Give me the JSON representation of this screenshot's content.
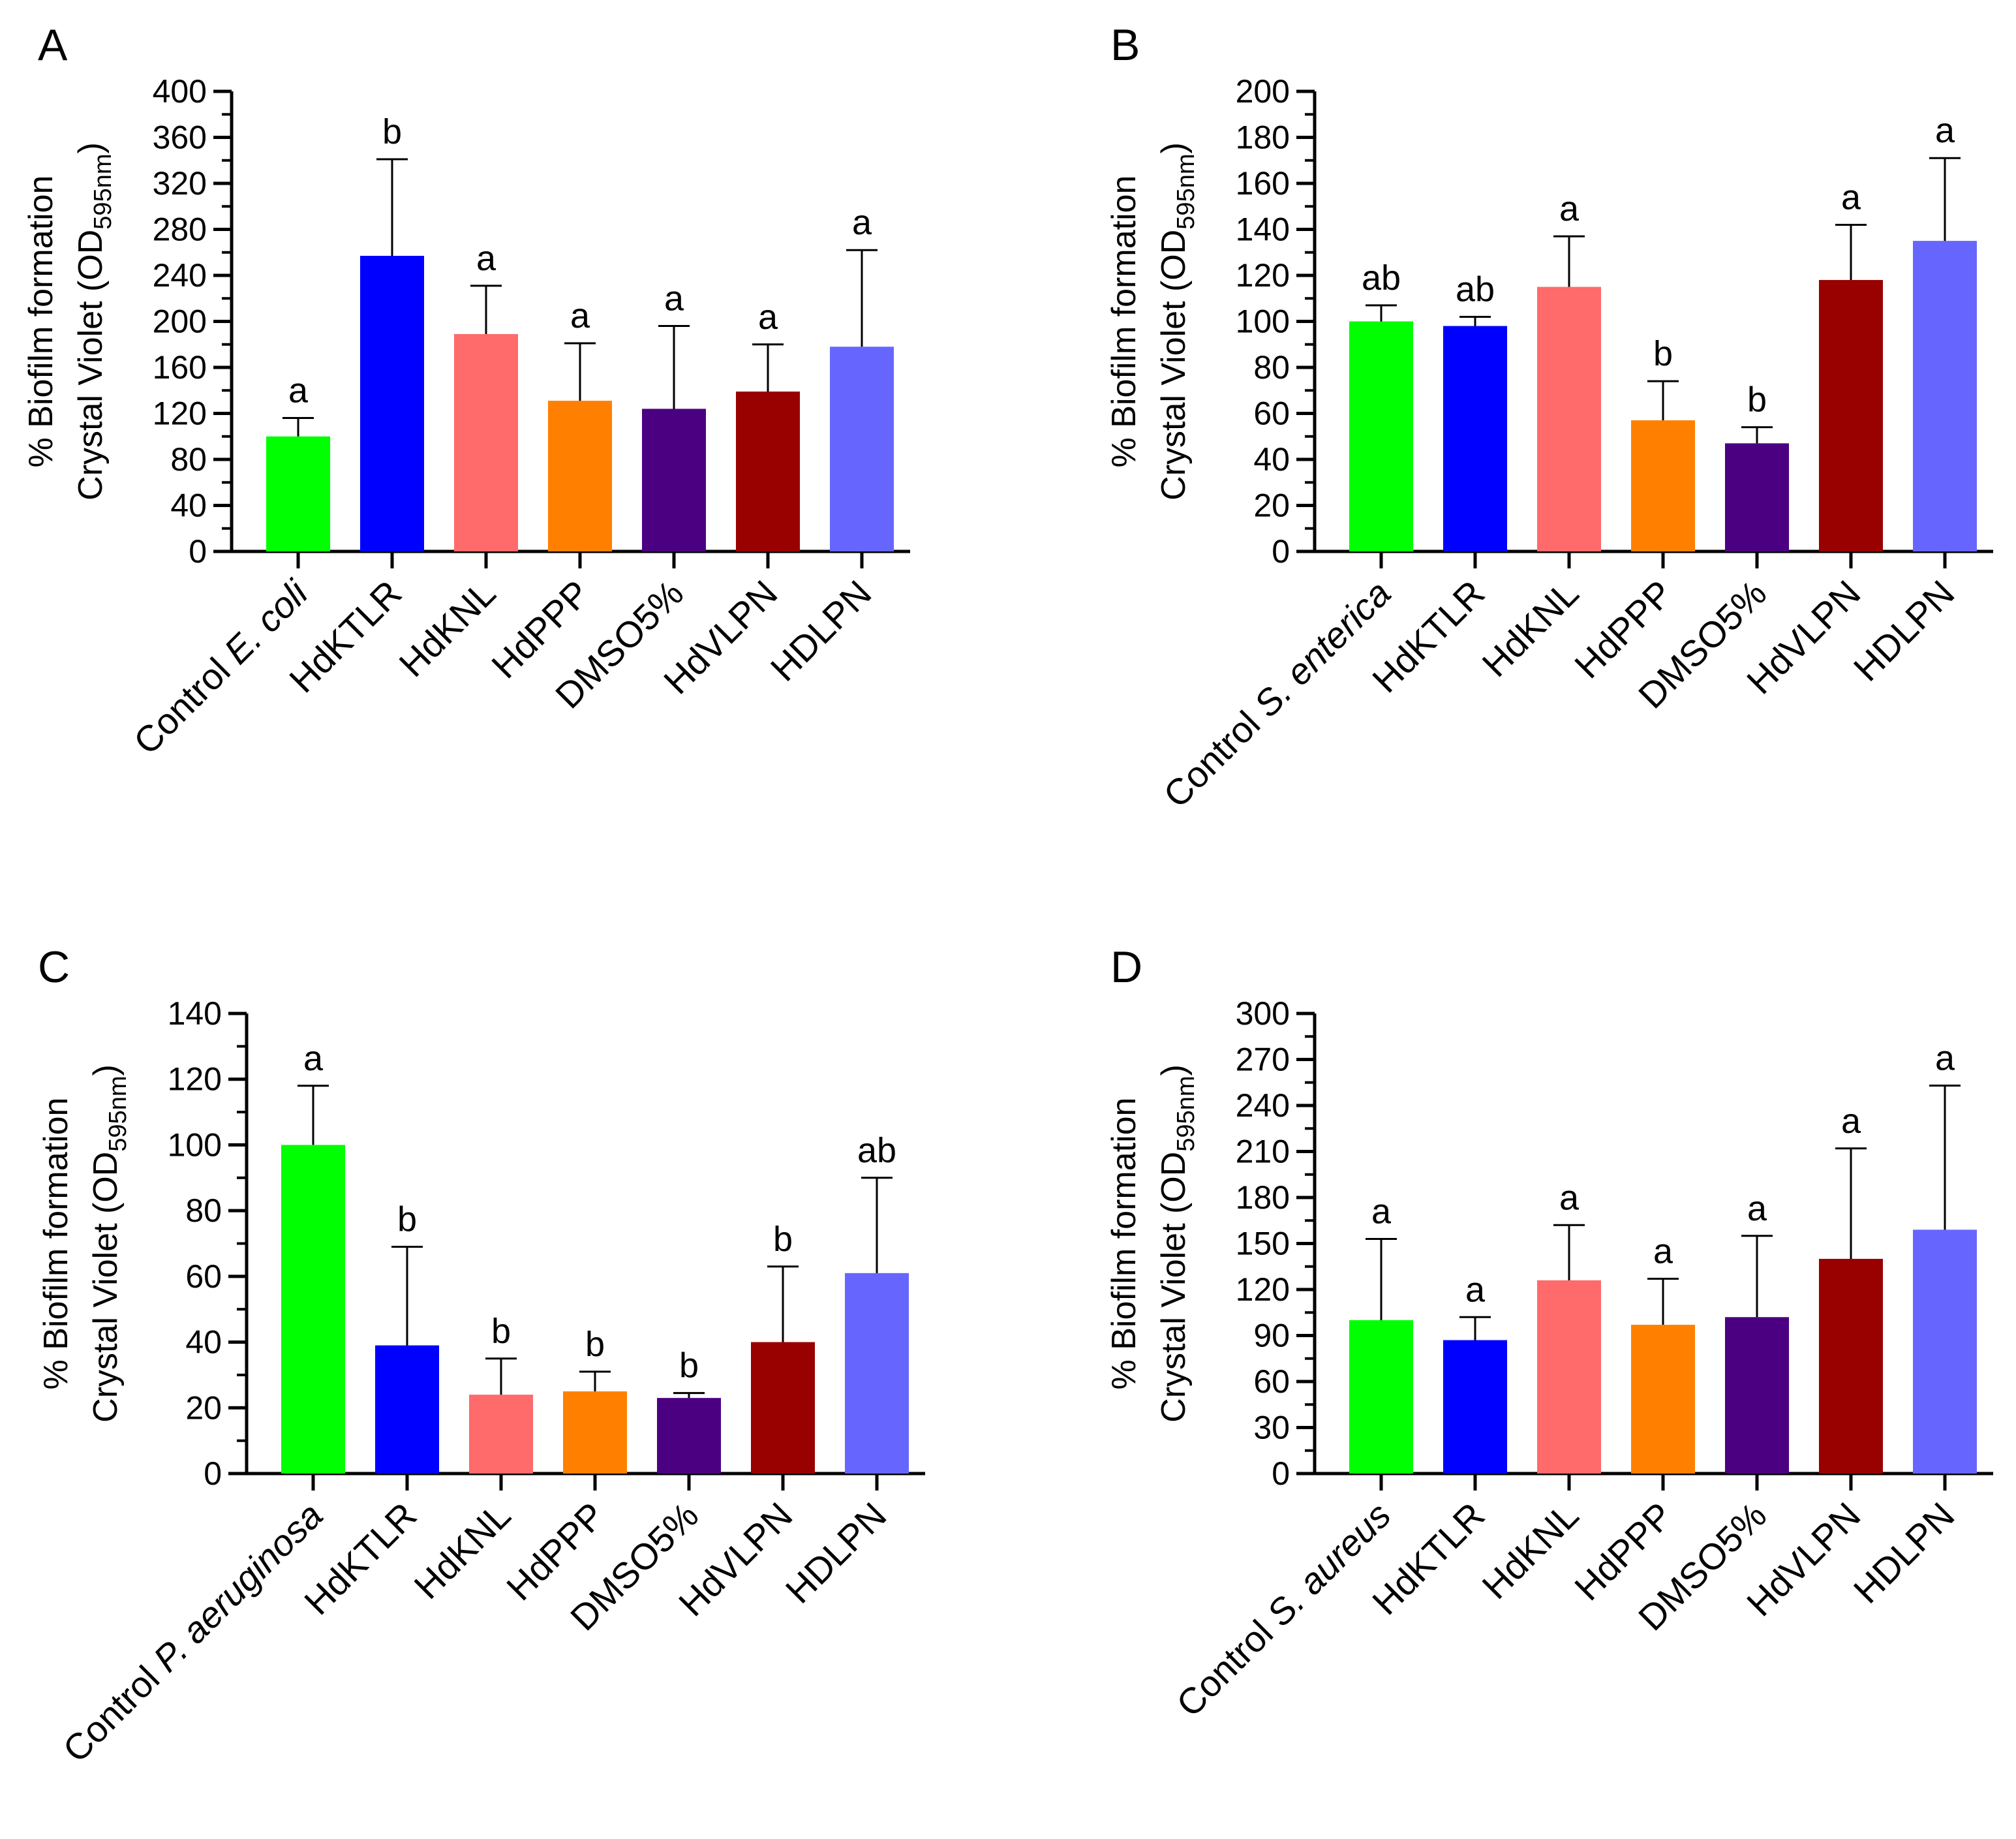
{
  "chart_data": [
    {
      "type": "bar",
      "panel": "A",
      "ylabel_line1": "% Biofilm formation",
      "ylabel_line2_prefix": "Crystal Violet (OD",
      "ylabel_sub": "595nm",
      "ylabel_suffix": ")",
      "ylim": [
        0,
        400
      ],
      "yticks": [
        0,
        40,
        80,
        120,
        160,
        200,
        240,
        280,
        320,
        360,
        400
      ],
      "categories": [
        {
          "prefix": "Control ",
          "italic": "E. coli"
        },
        {
          "prefix": "HdKTLR",
          "italic": ""
        },
        {
          "prefix": "HdKNL",
          "italic": ""
        },
        {
          "prefix": "HdPPP",
          "italic": ""
        },
        {
          "prefix": "DMSO5%",
          "italic": ""
        },
        {
          "prefix": "HdVLPN",
          "italic": ""
        },
        {
          "prefix": "HDLPN",
          "italic": ""
        }
      ],
      "values": [
        100,
        257,
        189,
        131,
        124,
        139,
        178
      ],
      "errors": [
        16,
        84,
        42,
        50,
        72,
        41,
        84
      ],
      "significance": [
        "a",
        "b",
        "a",
        "a",
        "a",
        "a",
        "a"
      ]
    },
    {
      "type": "bar",
      "panel": "B",
      "ylabel_line1": "% Biofilm formation",
      "ylabel_line2_prefix": "Crystal Violet (OD",
      "ylabel_sub": "595nm",
      "ylabel_suffix": ")",
      "ylim": [
        0,
        200
      ],
      "yticks": [
        0,
        20,
        40,
        60,
        80,
        100,
        120,
        140,
        160,
        180,
        200
      ],
      "categories": [
        {
          "prefix": "Control ",
          "italic": "S. enterica"
        },
        {
          "prefix": "HdKTLR",
          "italic": ""
        },
        {
          "prefix": "HdKNL",
          "italic": ""
        },
        {
          "prefix": "HdPPP",
          "italic": ""
        },
        {
          "prefix": "DMSO5%",
          "italic": ""
        },
        {
          "prefix": "HdVLPN",
          "italic": ""
        },
        {
          "prefix": "HDLPN",
          "italic": ""
        }
      ],
      "values": [
        100,
        98,
        115,
        57,
        47,
        118,
        135
      ],
      "errors": [
        7,
        4,
        22,
        17,
        7,
        24,
        36
      ],
      "significance": [
        "ab",
        "ab",
        "a",
        "b",
        "b",
        "a",
        "a"
      ]
    },
    {
      "type": "bar",
      "panel": "C",
      "ylabel_line1": "% Biofilm formation",
      "ylabel_line2_prefix": "Crystal Violet (OD",
      "ylabel_sub": "595nm",
      "ylabel_suffix": ")",
      "ylim": [
        0,
        140
      ],
      "yticks": [
        0,
        20,
        40,
        60,
        80,
        100,
        120,
        140
      ],
      "categories": [
        {
          "prefix": "Control ",
          "italic": "P. aeruginosa"
        },
        {
          "prefix": "HdKTLR",
          "italic": ""
        },
        {
          "prefix": "HdKNL",
          "italic": ""
        },
        {
          "prefix": "HdPPP",
          "italic": ""
        },
        {
          "prefix": "DMSO5%",
          "italic": ""
        },
        {
          "prefix": "HdVLPN",
          "italic": ""
        },
        {
          "prefix": "HDLPN",
          "italic": ""
        }
      ],
      "values": [
        100,
        39,
        24,
        25,
        23,
        40,
        61
      ],
      "errors": [
        18,
        30,
        11,
        6,
        1.5,
        23,
        29
      ],
      "significance": [
        "a",
        "b",
        "b",
        "b",
        "b",
        "b",
        "ab"
      ]
    },
    {
      "type": "bar",
      "panel": "D",
      "ylabel_line1": "% Biofilm formation",
      "ylabel_line2_prefix": "Crystal Violet (OD",
      "ylabel_sub": "595nm",
      "ylabel_suffix": ")",
      "ylim": [
        0,
        300
      ],
      "yticks": [
        0,
        30,
        60,
        90,
        120,
        150,
        180,
        210,
        240,
        270,
        300
      ],
      "categories": [
        {
          "prefix": "Control ",
          "italic": "S. aureus"
        },
        {
          "prefix": "HdKTLR",
          "italic": ""
        },
        {
          "prefix": "HdKNL",
          "italic": ""
        },
        {
          "prefix": "HdPPP",
          "italic": ""
        },
        {
          "prefix": "DMSO5%",
          "italic": ""
        },
        {
          "prefix": "HdVLPN",
          "italic": ""
        },
        {
          "prefix": "HDLPN",
          "italic": ""
        }
      ],
      "values": [
        100,
        87,
        126,
        97,
        102,
        140,
        159
      ],
      "errors": [
        53,
        15,
        36,
        30,
        53,
        72,
        94
      ],
      "significance": [
        "a",
        "a",
        "a",
        "a",
        "a",
        "a",
        "a"
      ]
    }
  ],
  "colors": [
    "#00ff00",
    "#0000ff",
    "#ff6a6a",
    "#ff8000",
    "#4b0082",
    "#990000",
    "#6666ff"
  ]
}
